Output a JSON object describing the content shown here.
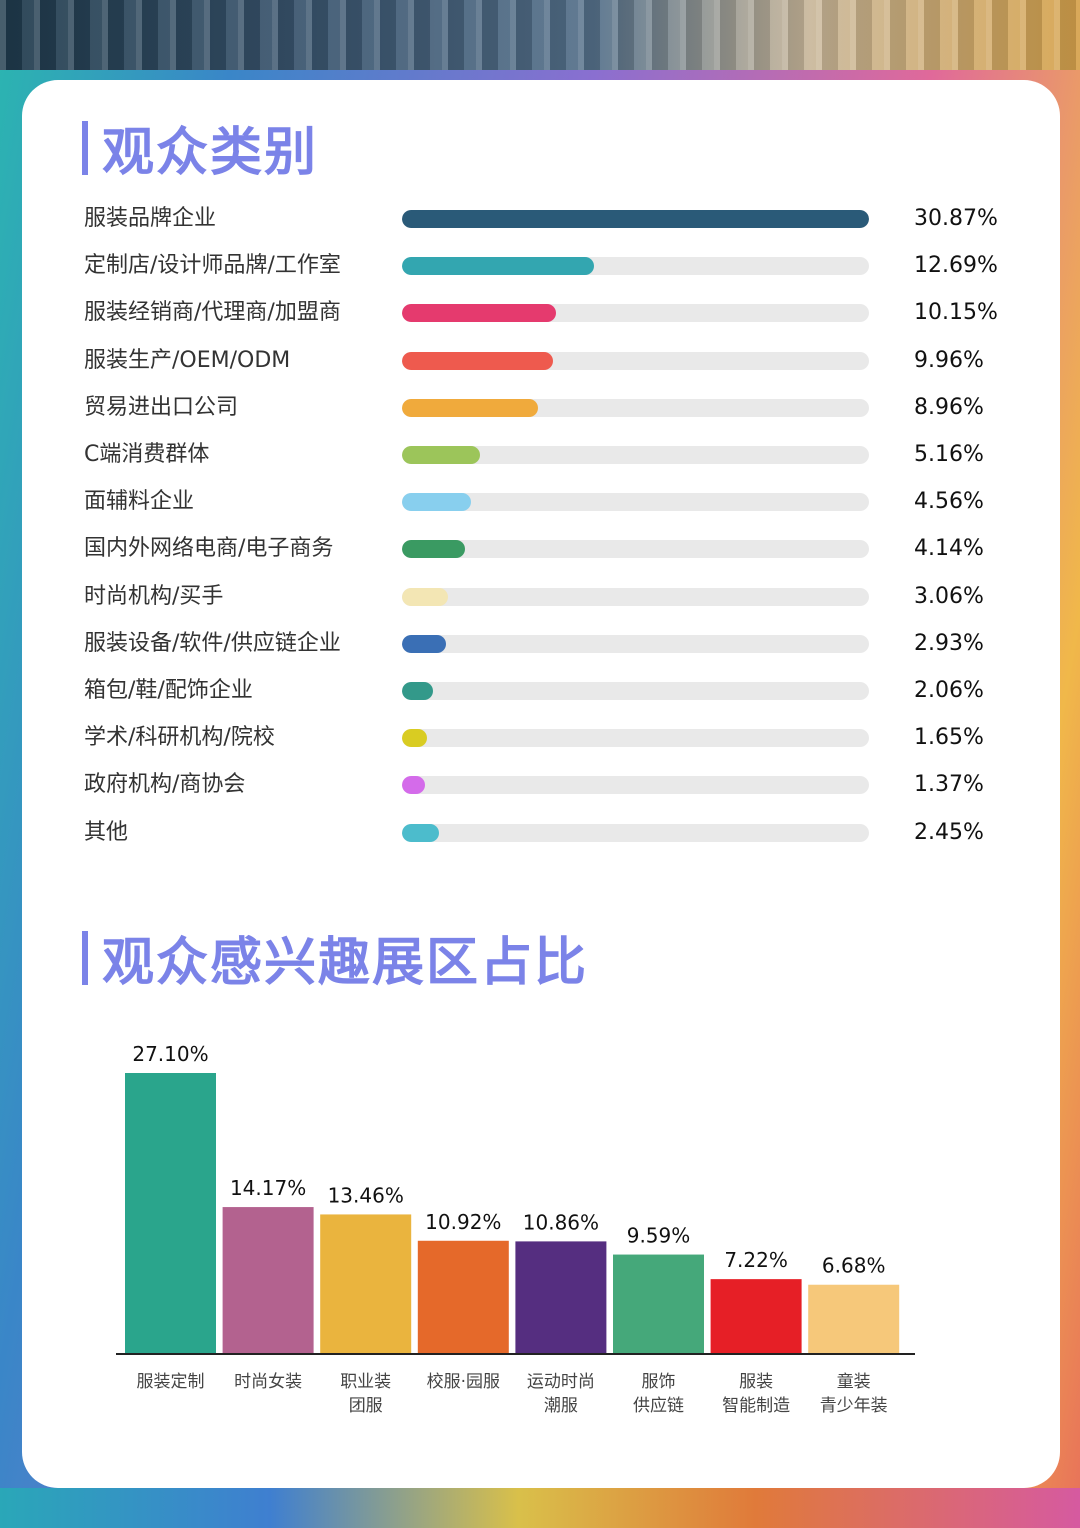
{
  "sections": {
    "category_title": "观众类别",
    "interest_title": "观众感兴趣展区占比"
  },
  "chart_data": [
    {
      "type": "bar",
      "orientation": "horizontal",
      "title": "观众类别",
      "categories": [
        "服装品牌企业",
        "定制店/设计师品牌/工作室",
        "服装经销商/代理商/加盟商",
        "服装生产/OEM/ODM",
        "贸易进出口公司",
        "C端消费群体",
        "面辅料企业",
        "国内外网络电商/电子商务",
        "时尚机构/买手",
        "服装设备/软件/供应链企业",
        "箱包/鞋/配饰企业",
        "学术/科研机构/院校",
        "政府机构/商协会",
        "其他"
      ],
      "values": [
        30.87,
        12.69,
        10.15,
        9.96,
        8.96,
        5.16,
        4.56,
        4.14,
        3.06,
        2.93,
        2.06,
        1.65,
        1.37,
        2.45
      ],
      "value_labels": [
        "30.87%",
        "12.69%",
        "10.15%",
        "9.96%",
        "8.96%",
        "5.16%",
        "4.56%",
        "4.14%",
        "3.06%",
        "2.93%",
        "2.06%",
        "1.65%",
        "1.37%",
        "2.45%"
      ],
      "colors": [
        "#2a5a78",
        "#33a6b0",
        "#e53a6e",
        "#ee5a4e",
        "#f0aa3c",
        "#9cc55a",
        "#88cfee",
        "#3a9a62",
        "#f3e6b4",
        "#3a6fb5",
        "#33998a",
        "#d9cc22",
        "#d46bea",
        "#4cbccc"
      ],
      "xlim": [
        0,
        30.87
      ]
    },
    {
      "type": "bar",
      "title": "观众感兴趣展区占比",
      "categories": [
        [
          "服装定制"
        ],
        [
          "时尚女装"
        ],
        [
          "职业装",
          "团服"
        ],
        [
          "校服·园服"
        ],
        [
          "运动时尚",
          "潮服"
        ],
        [
          "服饰",
          "供应链"
        ],
        [
          "服装",
          "智能制造"
        ],
        [
          "童装",
          "青少年装"
        ]
      ],
      "values": [
        27.1,
        14.17,
        13.46,
        10.92,
        10.86,
        9.59,
        7.22,
        6.68
      ],
      "value_labels": [
        "27.10%",
        "14.17%",
        "13.46%",
        "10.92%",
        "10.86%",
        "9.59%",
        "7.22%",
        "6.68%"
      ],
      "colors": [
        "#2aa58c",
        "#b3628f",
        "#eab43e",
        "#e5692a",
        "#552e80",
        "#45a87a",
        "#e61f26",
        "#f6c87a"
      ],
      "ylim": [
        0,
        27.1
      ]
    }
  ]
}
